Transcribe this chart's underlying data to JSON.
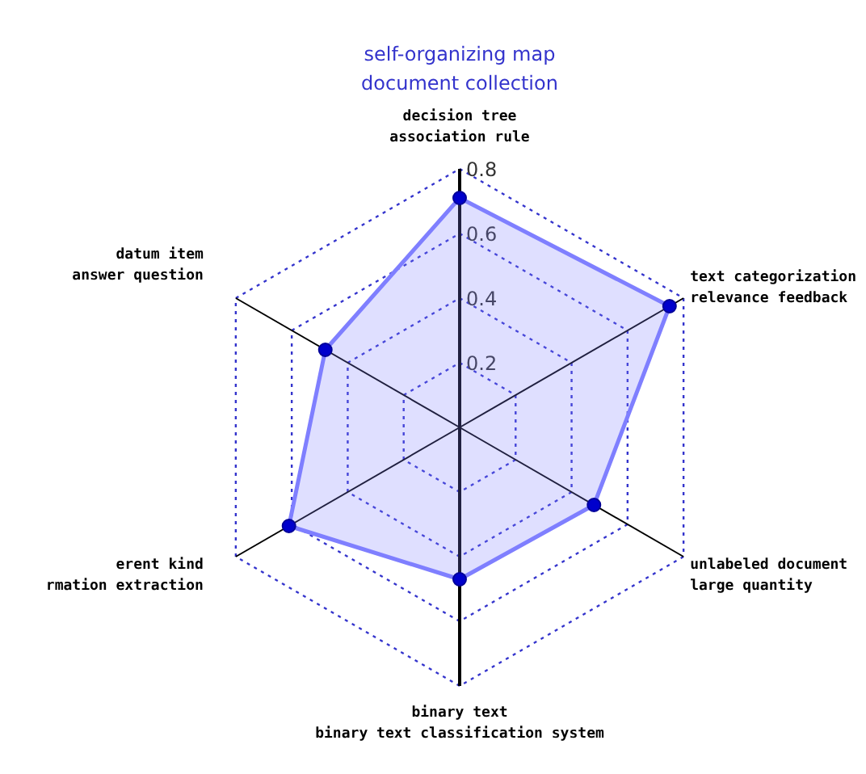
{
  "chart_data": {
    "type": "radar",
    "title": "self-organizing map\ndocument collection",
    "categories": [
      "decision tree\nassociation rule",
      "text categorization\nrelevance feedback",
      "unlabeled document\nlarge quantity",
      "binary text\nbinary text classification system",
      "erent kind\nrmation extraction",
      "datum item\nanswer question"
    ],
    "series": [
      {
        "color": "#7f7fff",
        "values": [
          0.71,
          0.75,
          0.48,
          0.47,
          0.61,
          0.48
        ]
      }
    ],
    "ylim": [
      0,
      0.8
    ],
    "yticks": [
      0.2,
      0.4,
      0.6,
      0.8
    ],
    "marker": "circle",
    "grid": true
  }
}
